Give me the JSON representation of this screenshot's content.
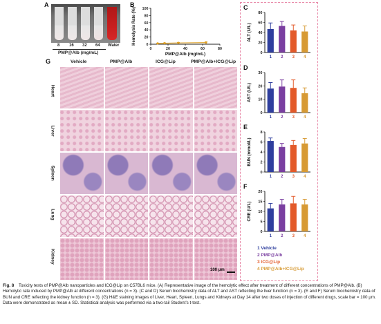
{
  "figure": {
    "panel_letters": {
      "a": "A",
      "b": "B",
      "c": "C",
      "d": "D",
      "e": "E",
      "f": "F",
      "g": "G"
    },
    "panelA": {
      "concentrations": [
        "8",
        "16",
        "32",
        "64",
        "Water"
      ],
      "xlabel": "PMP@Alb (mg/mL)"
    },
    "histology": {
      "columns": [
        "Vehicle",
        "PMP@Alb",
        "ICG@Lip",
        "PMP@Alb+ICG@Lip"
      ],
      "rows": [
        "Heart",
        "Liver",
        "Spleen",
        "Lung",
        "Kidney"
      ],
      "scalebar": "100 μm"
    },
    "legend": [
      {
        "label": "1 Vehicle",
        "color": "#2f3f9e"
      },
      {
        "label": "2 PMP@Alb",
        "color": "#7a3fa0"
      },
      {
        "label": "3 ICG@Lip",
        "color": "#e35a2a"
      },
      {
        "label": "4 PMP@Alb+ICG@Lip",
        "color": "#d79a34"
      }
    ],
    "caption": {
      "title": "Fig. 8",
      "text": "Toxicity tests of PMP@Alb nanoparticles and ICG@Lip on C57BL6 mice. (A) Representative image of the hemolytic effect after treatment of different concentrations of PMP@Alb. (B) Hemolytic rate induced by PMP@Alb at different concentrations (n = 3). (C and D) Serum biochemistry data of ALT and AST reflecting the liver function (n = 3). (E and F) Serum biochemistry data of BUN and CRE reflecting the kidney function (n = 3). (G) H&E staining images of Liver, Heart, Spleen, Lungs and Kidneys at Day 14 after two doses of injection of different drugs, scale bar = 100 μm. Data were demonstrated as mean ± SD. Statistical analysis was performed via a two-tail Student’s t-test."
    }
  },
  "chart_data": [
    {
      "id": "B",
      "type": "line",
      "x": [
        8,
        16,
        32,
        64
      ],
      "values": [
        2.2,
        2.8,
        3.6,
        4.5
      ],
      "error": [
        0.6,
        0.8,
        1.5,
        2.5
      ],
      "xlabel": "PMP@Alb (mg/mL)",
      "ylabel": "Hemolysis Rate (%)",
      "xlim": [
        0,
        80
      ],
      "ylim": [
        0,
        100
      ],
      "xticks": [
        0,
        20,
        40,
        60,
        80
      ],
      "yticks": [
        0,
        20,
        40,
        60,
        80,
        100
      ],
      "color": "#e0a020"
    },
    {
      "id": "C",
      "type": "bar",
      "categories": [
        "1",
        "2",
        "3",
        "4"
      ],
      "values": [
        47,
        53,
        44,
        42
      ],
      "error": [
        12,
        9,
        11,
        11
      ],
      "ylabel": "ALT (U/L)",
      "ylim": [
        0,
        80
      ],
      "yticks": [
        0,
        20,
        40,
        60,
        80
      ]
    },
    {
      "id": "D",
      "type": "bar",
      "categories": [
        "1",
        "2",
        "3",
        "4"
      ],
      "values": [
        18,
        19.5,
        18.5,
        14.5
      ],
      "error": [
        4.5,
        5,
        6,
        4
      ],
      "ylabel": "AST (U/L)",
      "ylim": [
        0,
        30
      ],
      "yticks": [
        0,
        10,
        20,
        30
      ]
    },
    {
      "id": "E",
      "type": "bar",
      "categories": [
        "1",
        "2",
        "3",
        "4"
      ],
      "values": [
        6.2,
        5,
        5.4,
        5.7
      ],
      "error": [
        0.6,
        0.7,
        0.9,
        1
      ],
      "ylabel": "BUN (mmol/L)",
      "ylim": [
        0,
        8
      ],
      "yticks": [
        0,
        2,
        4,
        6,
        8
      ]
    },
    {
      "id": "F",
      "type": "bar",
      "categories": [
        "1",
        "2",
        "3",
        "4"
      ],
      "values": [
        11.5,
        13.5,
        14,
        13.5
      ],
      "error": [
        2.5,
        2.5,
        3.5,
        2.5
      ],
      "ylabel": "CRE (U/L)",
      "ylim": [
        0,
        20
      ],
      "yticks": [
        0,
        5,
        10,
        15,
        20
      ]
    }
  ],
  "colors": {
    "bar1": "#2f3f9e",
    "bar2": "#7a3fa0",
    "bar3": "#e35a2a",
    "bar4": "#d79a34",
    "he_pink": "#e9bccf",
    "he_purple": "#8f7ab8",
    "frame": "#e889a8"
  }
}
